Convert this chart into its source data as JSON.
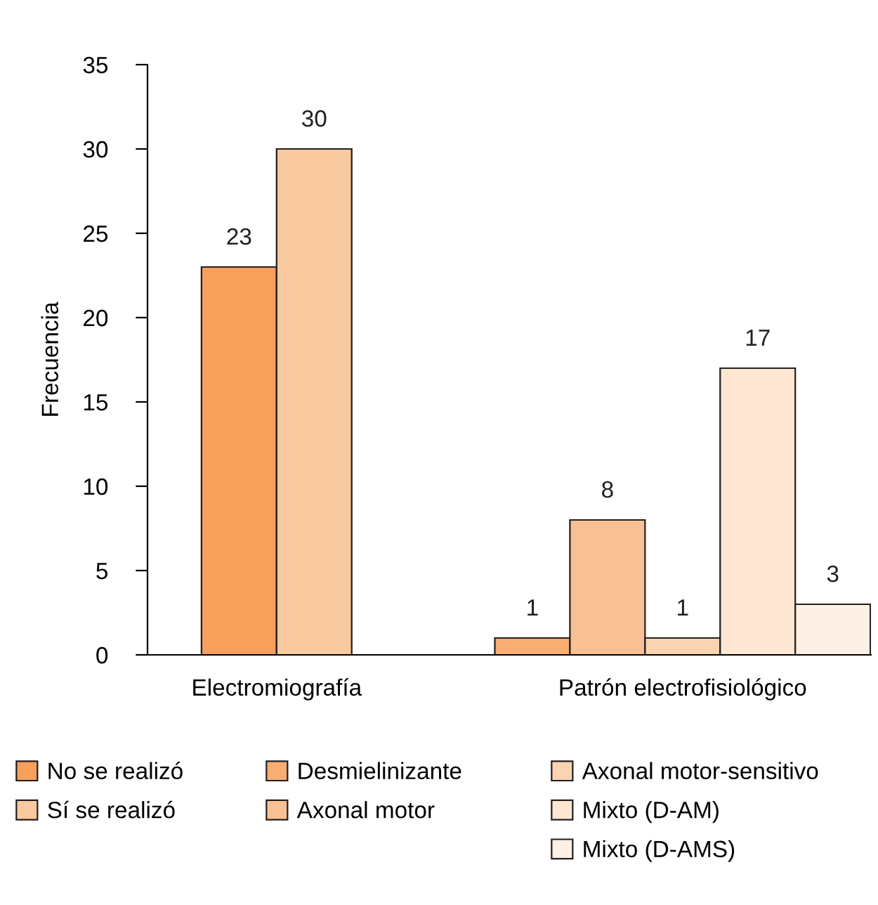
{
  "chart_data": {
    "type": "bar",
    "ylabel": "Frecuencia",
    "categories": [
      "Electromiografía",
      "Patrón electrofisiológico"
    ],
    "series": [
      {
        "name": "No se realizó",
        "color": "#f79f5b",
        "values": [
          23,
          null
        ]
      },
      {
        "name": "Sí se realizó",
        "color": "#f9c9a0",
        "values": [
          30,
          null
        ]
      },
      {
        "name": "Desmielinizante",
        "color": "#f8ad72",
        "values": [
          null,
          1
        ]
      },
      {
        "name": "Axonal motor",
        "color": "#f9c193",
        "values": [
          null,
          8
        ]
      },
      {
        "name": "Axonal motor-sensitivo",
        "color": "#fad3b2",
        "values": [
          null,
          1
        ]
      },
      {
        "name": "Mixto (D-AM)",
        "color": "#fde6d2",
        "values": [
          null,
          17
        ]
      },
      {
        "name": "Mixto (D-AMS)",
        "color": "#fdf0e5",
        "values": [
          null,
          3
        ]
      }
    ],
    "ylim": [
      0,
      35
    ],
    "yticks": [
      0,
      5,
      10,
      15,
      20,
      25,
      30,
      35
    ],
    "data_labels": true,
    "legend": "bottom",
    "grid": false
  }
}
